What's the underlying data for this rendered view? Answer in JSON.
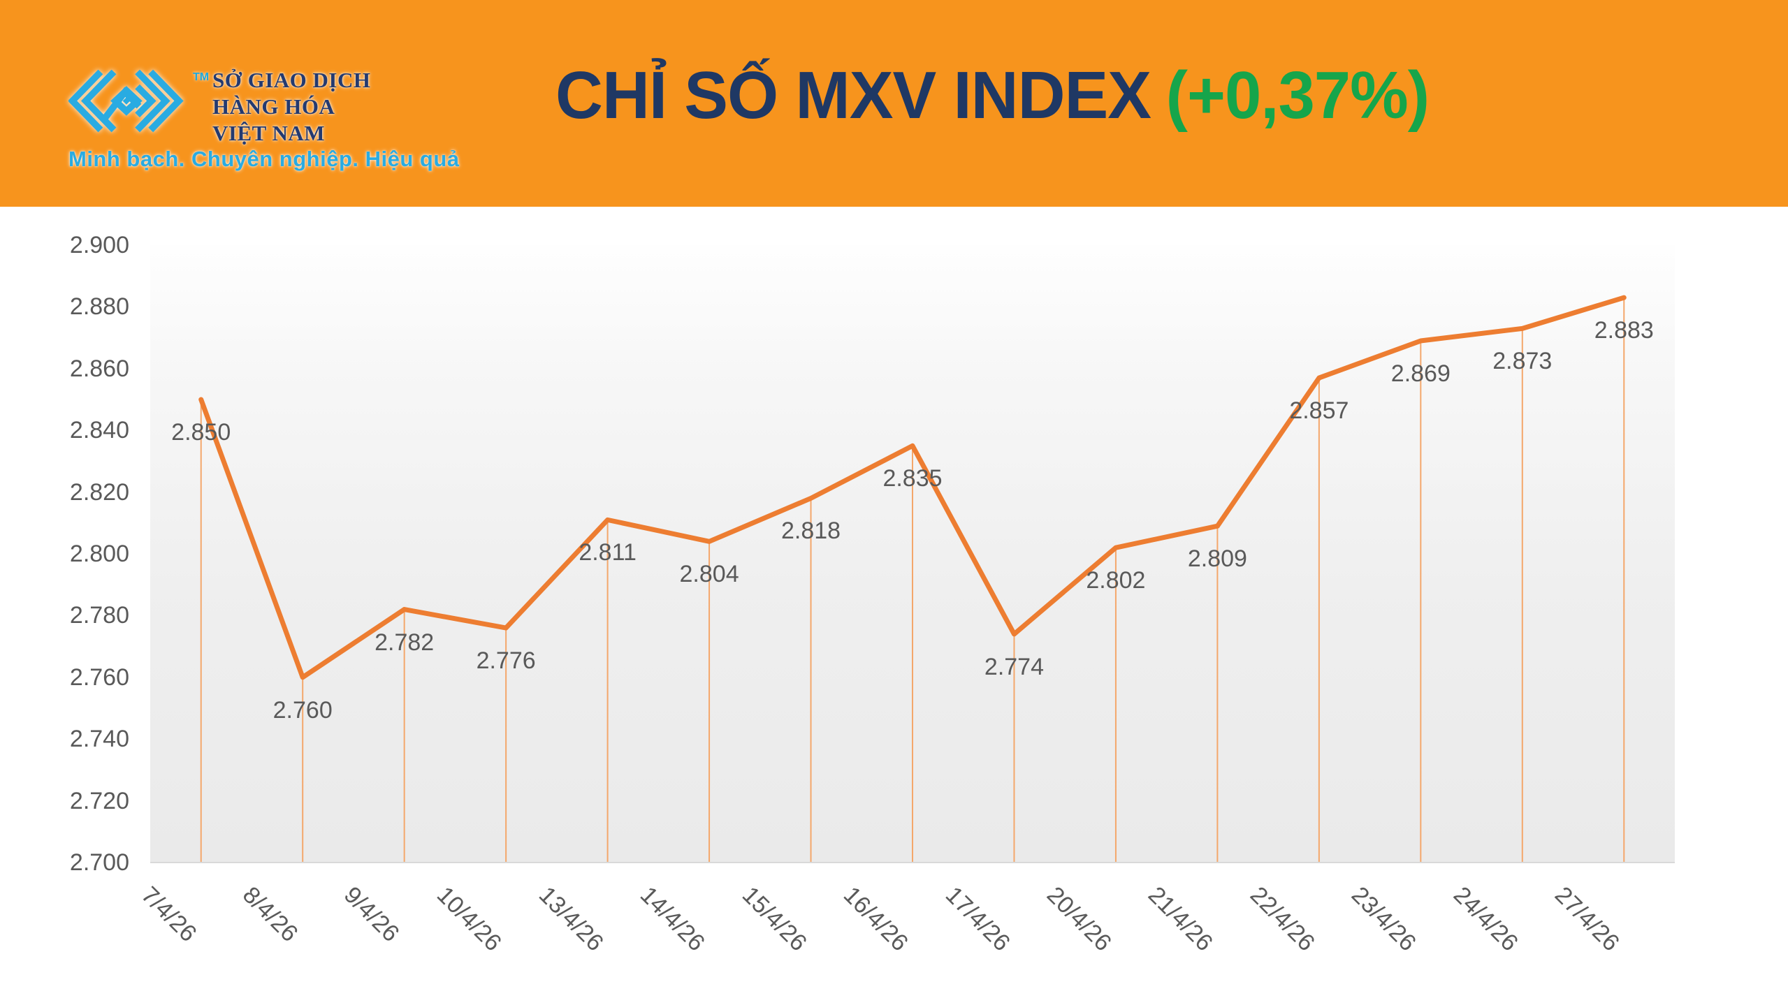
{
  "header": {
    "logo": {
      "org_name": "SỞ GIAO DỊCH\nHÀNG HÓA\nVIỆT NAM",
      "trademark": "TM",
      "tagline": "Minh bạch. Chuyên nghiệp. Hiệu quả"
    },
    "title": "CHỈ SỐ MXV INDEX",
    "title_change": "(+0,37%)",
    "colors": {
      "banner_orange": "#F7941D",
      "title_navy": "#1F3864",
      "change_green": "#16A54B",
      "logo_cyan": "#29ABE2",
      "logo_navy": "#243A70"
    }
  },
  "chart_data": {
    "type": "line",
    "title": "CHỈ SỐ MXV INDEX (+0,37%)",
    "categories": [
      "7/4/26",
      "8/4/26",
      "9/4/26",
      "10/4/26",
      "13/4/26",
      "14/4/26",
      "15/4/26",
      "16/4/26",
      "17/4/26",
      "20/4/26",
      "21/4/26",
      "22/4/26",
      "23/4/26",
      "24/4/26",
      "27/4/26"
    ],
    "values": [
      2850,
      2760,
      2782,
      2776,
      2811,
      2804,
      2818,
      2835,
      2774,
      2802,
      2809,
      2857,
      2869,
      2873,
      2883
    ],
    "point_labels": [
      "2.850",
      "2.760",
      "2.782",
      "2.776",
      "2.811",
      "2.804",
      "2.818",
      "2.835",
      "2.774",
      "2.802",
      "2.809",
      "2.857",
      "2.869",
      "2.873",
      "2.883"
    ],
    "y_ticks": [
      "2.700",
      "2.720",
      "2.740",
      "2.760",
      "2.780",
      "2.800",
      "2.820",
      "2.840",
      "2.860",
      "2.880",
      "2.900"
    ],
    "ylim": [
      2700,
      2900
    ],
    "xlabel": "",
    "ylabel": "",
    "grid": false,
    "legend": false,
    "line_color": "#ED7D31",
    "dropline_color": "#F4A76B",
    "axisline_color": "#D9D9D9",
    "tick_label_color": "#595959"
  }
}
